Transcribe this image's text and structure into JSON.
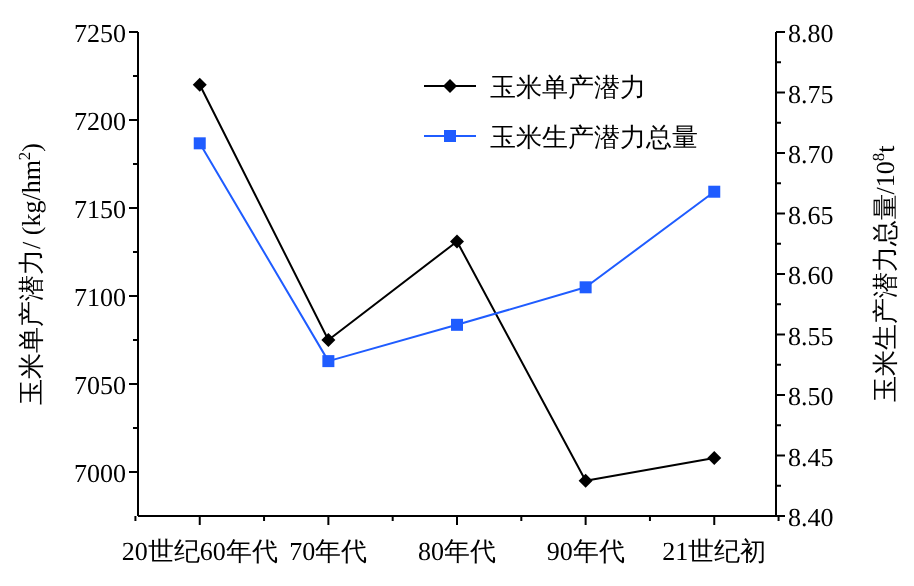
{
  "chart_data": {
    "type": "line",
    "categories": [
      "20世纪60年代",
      "70年代",
      "80年代",
      "90年代",
      "21世纪初"
    ],
    "ylabel": "玉米单产潜力/ (kg/hm$^{2}$)",
    "y2label": "玉米生产潜力总量/10$^{8}$t",
    "ylim": [
      6975,
      7250
    ],
    "yticks": [
      7000,
      {
        "value": 7025,
        "label": null
      },
      7050,
      {
        "value": 7075,
        "label": null
      },
      7100,
      {
        "value": 7125,
        "label": null
      },
      7150,
      {
        "value": 7175,
        "label": null
      },
      7200,
      {
        "value": 7225,
        "label": null
      },
      7250
    ],
    "y2lim": [
      8.4,
      8.8
    ],
    "y2ticks": [
      {
        "value": 8.4,
        "label": "8.40"
      },
      {
        "value": 8.425,
        "label": null
      },
      {
        "value": 8.45,
        "label": "8.45"
      },
      {
        "value": 8.475,
        "label": null
      },
      {
        "value": 8.5,
        "label": "8.50"
      },
      {
        "value": 8.525,
        "label": null
      },
      {
        "value": 8.55,
        "label": "8.55"
      },
      {
        "value": 8.575,
        "label": null
      },
      {
        "value": 8.6,
        "label": "8.60"
      },
      {
        "value": 8.625,
        "label": null
      },
      {
        "value": 8.65,
        "label": "8.65"
      },
      {
        "value": 8.675,
        "label": null
      },
      {
        "value": 8.7,
        "label": "8.70"
      },
      {
        "value": 8.725,
        "label": null
      },
      {
        "value": 8.75,
        "label": "8.75"
      },
      {
        "value": 8.775,
        "label": null
      },
      {
        "value": 8.8,
        "label": "8.80"
      }
    ],
    "series": [
      {
        "name": "玉米单产潜力",
        "color": "#000000",
        "marker": "diamond",
        "values": [
          7220,
          7075,
          7131,
          6995,
          7008
        ]
      },
      {
        "name": "玉米生产潜力总量",
        "color": "#1f5cff",
        "marker": "square",
        "axis": "y2",
        "values": [
          8.708,
          8.528,
          8.558,
          8.589,
          8.668
        ]
      }
    ],
    "legend": "top right",
    "grid": false
  }
}
